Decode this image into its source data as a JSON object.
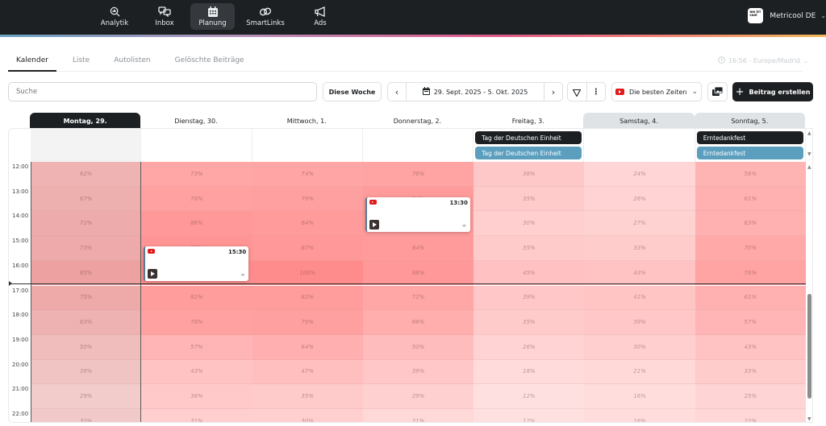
{
  "nav": {
    "items": [
      {
        "label": "Analytik",
        "icon": "analytics-icon"
      },
      {
        "label": "Inbox",
        "icon": "inbox-icon"
      },
      {
        "label": "Planung",
        "icon": "calendar-icon",
        "active": true
      },
      {
        "label": "SmartLinks",
        "icon": "link-icon"
      },
      {
        "label": "Ads",
        "icon": "megaphone-icon"
      }
    ],
    "account": {
      "logo": "me tri cool",
      "name": "Metricool DE"
    }
  },
  "tabs": [
    {
      "label": "Kalender",
      "active": true
    },
    {
      "label": "Liste"
    },
    {
      "label": "Autolisten"
    },
    {
      "label": "Gelöschte Beiträge"
    }
  ],
  "timezone": "16:56 - Europe/Madrid",
  "toolbar": {
    "search_placeholder": "Suche",
    "this_week": "Diese Woche",
    "date_range": "29. Sept. 2025 - 5. Okt. 2025",
    "best_times": "Die besten Zeiten",
    "create_post": "Beitrag erstellen"
  },
  "calendar": {
    "days": [
      {
        "label": "Montag, 29.",
        "type": "today"
      },
      {
        "label": "Dienstag, 30.",
        "type": "weekday"
      },
      {
        "label": "Mittwoch, 1.",
        "type": "weekday"
      },
      {
        "label": "Donnerstag, 2.",
        "type": "weekday"
      },
      {
        "label": "Freitag, 3.",
        "type": "weekday"
      },
      {
        "label": "Samstag, 4.",
        "type": "weekend"
      },
      {
        "label": "Sonntag, 5.",
        "type": "weekend"
      }
    ],
    "holidays": [
      {
        "day": 4,
        "label": "Tag der Deutschen Einheit",
        "style": "dark"
      },
      {
        "day": 4,
        "label": "Tag der Deutschen Einheit",
        "style": "blue"
      },
      {
        "day": 6,
        "label": "Erntedankfest",
        "style": "dark"
      },
      {
        "day": 6,
        "label": "Erntedankfest",
        "style": "blue"
      }
    ],
    "hours": [
      "12:00",
      "13:00",
      "14:00",
      "15:00",
      "16:00",
      "17:00",
      "18:00",
      "19:00",
      "20:00",
      "21:00",
      "22:00"
    ],
    "best_times_pct": [
      [
        62,
        67,
        72,
        73,
        85,
        75,
        63,
        50,
        39,
        29,
        32
      ],
      [
        73,
        78,
        86,
        92,
        100,
        82,
        78,
        57,
        43,
        36,
        31
      ],
      [
        74,
        79,
        84,
        87,
        100,
        82,
        79,
        64,
        47,
        35,
        30
      ],
      [
        76,
        84,
        84,
        84,
        88,
        72,
        66,
        50,
        39,
        29,
        21
      ],
      [
        38,
        35,
        30,
        35,
        45,
        39,
        35,
        26,
        18,
        12,
        12
      ],
      [
        24,
        26,
        27,
        33,
        43,
        41,
        39,
        30,
        21,
        16,
        16
      ],
      [
        58,
        61,
        63,
        70,
        76,
        61,
        57,
        43,
        33,
        25,
        22
      ]
    ],
    "posts": [
      {
        "day": 1,
        "time": "15:30",
        "network": "youtube"
      },
      {
        "day": 3,
        "time": "13:30",
        "network": "youtube"
      }
    ],
    "now_time": "16:56"
  },
  "colors": {
    "accent_dark": "#1d2023",
    "holiday_blue": "#5b9ebe",
    "youtube_red": "#e01b1b",
    "heat_max": "#ff8a8a"
  }
}
